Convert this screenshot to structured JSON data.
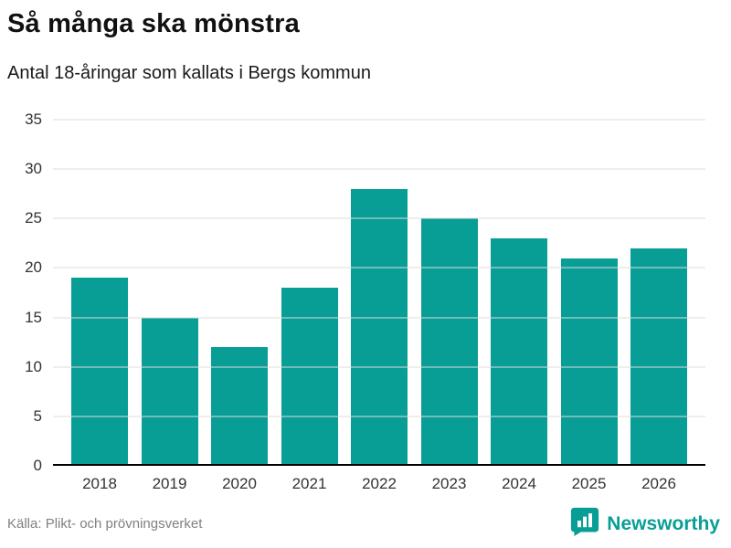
{
  "header": {
    "title": "Så många ska mönstra",
    "subtitle": "Antal 18-åringar som kallats i Bergs kommun"
  },
  "footer": {
    "source": "Källa: Plikt- och prövningsverket",
    "brand": "Newsworthy"
  },
  "colors": {
    "bar": "#089e96",
    "brand": "#089e96",
    "grid": "#dcdcdc",
    "axis": "#000000"
  },
  "chart_data": {
    "type": "bar",
    "title": "Så många ska mönstra",
    "subtitle": "Antal 18-åringar som kallats i Bergs kommun",
    "categories": [
      "2018",
      "2019",
      "2020",
      "2021",
      "2022",
      "2023",
      "2024",
      "2025",
      "2026"
    ],
    "values": [
      19,
      15,
      12,
      18,
      28,
      25,
      23,
      21,
      22
    ],
    "xlabel": "",
    "ylabel": "",
    "ylim": [
      0,
      35
    ],
    "yticks": [
      0,
      5,
      10,
      15,
      20,
      25,
      30,
      35
    ],
    "grid": true,
    "legend": "none",
    "bar_color": "#089e96",
    "source": "Källa: Plikt- och prövningsverket"
  }
}
